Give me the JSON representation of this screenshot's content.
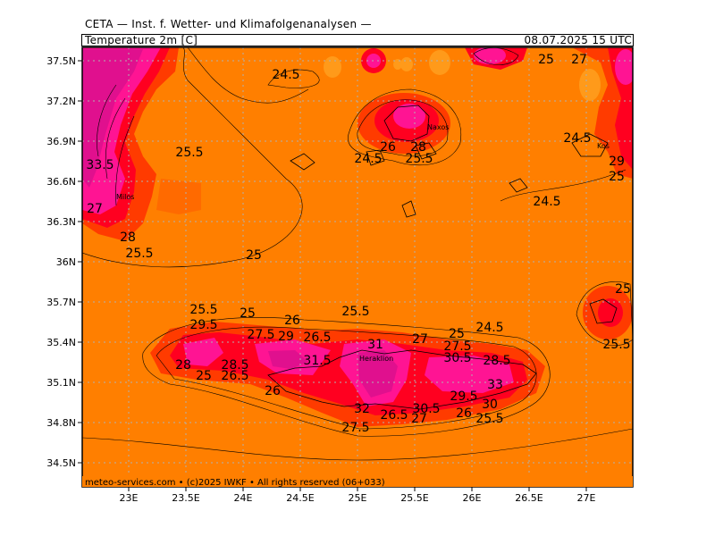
{
  "header": {
    "org": "CETA — Inst. f. Wetter- und Klimafolgenanalysen —",
    "variable": "Temperature 2m [C]",
    "datetime": "08.07.2025 15 UTC"
  },
  "axes": {
    "lon_ticks": [
      "23E",
      "23.5E",
      "24E",
      "24.5E",
      "25E",
      "25.5E",
      "26E",
      "26.5E",
      "27E"
    ],
    "lat_ticks": [
      "37.5N",
      "37.2N",
      "36.9N",
      "36.6N",
      "36.3N",
      "36N",
      "35.7N",
      "35.4N",
      "35.1N",
      "34.8N",
      "34.5N"
    ]
  },
  "contour_labels": [
    "24.5",
    "25",
    "27",
    "33.5",
    "25.5",
    "27",
    "28",
    "25.5",
    "25",
    "26",
    "28",
    "24.5",
    "25.5",
    "24.5",
    "24.5",
    "29",
    "25",
    "25",
    "25.5",
    "25.5",
    "29.5",
    "25",
    "26",
    "27.5",
    "29",
    "26.5",
    "25.5",
    "31",
    "28",
    "28.5",
    "31.5",
    "25",
    "26.5",
    "26",
    "27",
    "25",
    "24.5",
    "27.5",
    "30.5",
    "28.5",
    "33",
    "29.5",
    "30",
    "32",
    "26.5",
    "30.5",
    "27",
    "26",
    "25.5",
    "27.5"
  ],
  "places": [
    "Naxos",
    "Heraklion",
    "Milos",
    "Kos"
  ],
  "footer": "meteo-services.com • (c)2025 IWKF • All rights reserved (06+033)",
  "colors": {
    "background_field": "#ff7f00",
    "band_24": "#ff9a1a",
    "band_28": "#ff3b00",
    "band_30": "#ff0020",
    "band_32": "#ff1493",
    "band_34": "#e0108e",
    "band_36": "#c8087e",
    "grid": "#b0b0b0"
  }
}
